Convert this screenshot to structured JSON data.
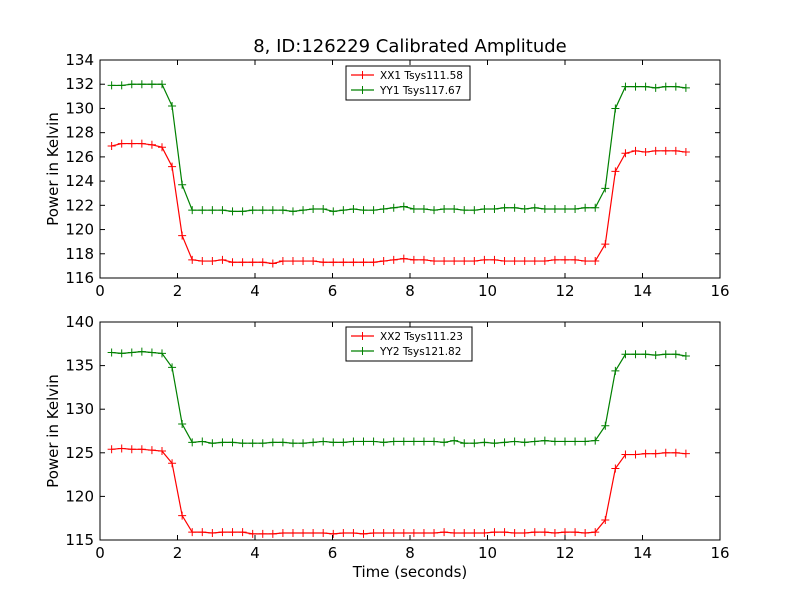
{
  "figure": {
    "title": "8, ID:126229 Calibrated Amplitude"
  },
  "chart_data": [
    {
      "type": "line",
      "title": "8, ID:126229 Calibrated Amplitude",
      "xlabel": "",
      "ylabel": "Power in Kelvin",
      "xlim": [
        0,
        16
      ],
      "ylim": [
        116,
        134
      ],
      "xticks": [
        0,
        2,
        4,
        6,
        8,
        10,
        12,
        14,
        16
      ],
      "yticks": [
        116,
        118,
        120,
        122,
        124,
        126,
        128,
        130,
        132,
        134
      ],
      "grid": false,
      "legend_position": "top-center",
      "marker": "+",
      "x": [
        0.3,
        0.56,
        0.82,
        1.08,
        1.34,
        1.6,
        1.86,
        2.12,
        2.38,
        2.64,
        2.9,
        3.16,
        3.42,
        3.68,
        3.94,
        4.2,
        4.46,
        4.72,
        4.98,
        5.24,
        5.5,
        5.76,
        6.02,
        6.28,
        6.54,
        6.8,
        7.06,
        7.32,
        7.58,
        7.84,
        8.1,
        8.36,
        8.62,
        8.88,
        9.14,
        9.4,
        9.66,
        9.92,
        10.18,
        10.44,
        10.7,
        10.96,
        11.22,
        11.48,
        11.74,
        12.0,
        12.26,
        12.52,
        12.78,
        13.04,
        13.3,
        13.56,
        13.82,
        14.08,
        14.34,
        14.6,
        14.86,
        15.12
      ],
      "series": [
        {
          "name": "XX1 Tsys111.58",
          "color": "#ff0000",
          "values": [
            126.9,
            127.1,
            127.1,
            127.1,
            127.0,
            126.8,
            125.2,
            119.5,
            117.5,
            117.4,
            117.4,
            117.5,
            117.3,
            117.3,
            117.3,
            117.3,
            117.2,
            117.4,
            117.4,
            117.4,
            117.4,
            117.3,
            117.3,
            117.3,
            117.3,
            117.3,
            117.3,
            117.4,
            117.5,
            117.6,
            117.5,
            117.5,
            117.4,
            117.4,
            117.4,
            117.4,
            117.4,
            117.5,
            117.5,
            117.4,
            117.4,
            117.4,
            117.4,
            117.4,
            117.5,
            117.5,
            117.5,
            117.4,
            117.4,
            118.8,
            124.8,
            126.3,
            126.5,
            126.4,
            126.5,
            126.5,
            126.5,
            126.4
          ]
        },
        {
          "name": "YY1 Tsys117.67",
          "color": "#008000",
          "values": [
            131.9,
            131.9,
            132.0,
            132.0,
            132.0,
            132.0,
            130.2,
            123.7,
            121.6,
            121.6,
            121.6,
            121.6,
            121.5,
            121.5,
            121.6,
            121.6,
            121.6,
            121.6,
            121.5,
            121.6,
            121.7,
            121.7,
            121.5,
            121.6,
            121.7,
            121.6,
            121.6,
            121.7,
            121.8,
            121.9,
            121.7,
            121.7,
            121.6,
            121.7,
            121.7,
            121.6,
            121.6,
            121.7,
            121.7,
            121.8,
            121.8,
            121.7,
            121.8,
            121.7,
            121.7,
            121.7,
            121.7,
            121.8,
            121.8,
            123.4,
            130.0,
            131.8,
            131.8,
            131.8,
            131.7,
            131.8,
            131.8,
            131.7
          ]
        }
      ]
    },
    {
      "type": "line",
      "title": "",
      "xlabel": "Time (seconds)",
      "ylabel": "Power in Kelvin",
      "xlim": [
        0,
        16
      ],
      "ylim": [
        115,
        140
      ],
      "xticks": [
        0,
        2,
        4,
        6,
        8,
        10,
        12,
        14,
        16
      ],
      "yticks": [
        115,
        120,
        125,
        130,
        135,
        140
      ],
      "grid": false,
      "legend_position": "top-center",
      "marker": "+",
      "x": [
        0.3,
        0.56,
        0.82,
        1.08,
        1.34,
        1.6,
        1.86,
        2.12,
        2.38,
        2.64,
        2.9,
        3.16,
        3.42,
        3.68,
        3.94,
        4.2,
        4.46,
        4.72,
        4.98,
        5.24,
        5.5,
        5.76,
        6.02,
        6.28,
        6.54,
        6.8,
        7.06,
        7.32,
        7.58,
        7.84,
        8.1,
        8.36,
        8.62,
        8.88,
        9.14,
        9.4,
        9.66,
        9.92,
        10.18,
        10.44,
        10.7,
        10.96,
        11.22,
        11.48,
        11.74,
        12.0,
        12.26,
        12.52,
        12.78,
        13.04,
        13.3,
        13.56,
        13.82,
        14.08,
        14.34,
        14.6,
        14.86,
        15.12
      ],
      "series": [
        {
          "name": "XX2 Tsys111.23",
          "color": "#ff0000",
          "values": [
            125.4,
            125.5,
            125.4,
            125.4,
            125.3,
            125.2,
            123.8,
            117.8,
            115.9,
            115.9,
            115.8,
            115.9,
            115.9,
            115.9,
            115.7,
            115.7,
            115.7,
            115.8,
            115.8,
            115.8,
            115.8,
            115.8,
            115.7,
            115.8,
            115.8,
            115.7,
            115.8,
            115.8,
            115.8,
            115.8,
            115.8,
            115.8,
            115.8,
            115.9,
            115.8,
            115.8,
            115.8,
            115.8,
            115.9,
            115.9,
            115.8,
            115.8,
            115.9,
            115.9,
            115.8,
            115.9,
            115.9,
            115.8,
            115.9,
            117.3,
            123.2,
            124.8,
            124.8,
            124.9,
            124.9,
            125.0,
            125.0,
            124.9
          ]
        },
        {
          "name": "YY2 Tsys121.82",
          "color": "#008000",
          "values": [
            136.5,
            136.4,
            136.5,
            136.6,
            136.5,
            136.4,
            134.8,
            128.3,
            126.2,
            126.3,
            126.1,
            126.2,
            126.2,
            126.1,
            126.1,
            126.1,
            126.2,
            126.2,
            126.1,
            126.1,
            126.2,
            126.3,
            126.2,
            126.2,
            126.3,
            126.3,
            126.3,
            126.2,
            126.3,
            126.3,
            126.3,
            126.3,
            126.3,
            126.2,
            126.4,
            126.1,
            126.1,
            126.2,
            126.1,
            126.2,
            126.3,
            126.2,
            126.3,
            126.4,
            126.3,
            126.3,
            126.3,
            126.3,
            126.4,
            128.1,
            134.4,
            136.3,
            136.3,
            136.3,
            136.2,
            136.3,
            136.3,
            136.1
          ]
        }
      ]
    }
  ]
}
